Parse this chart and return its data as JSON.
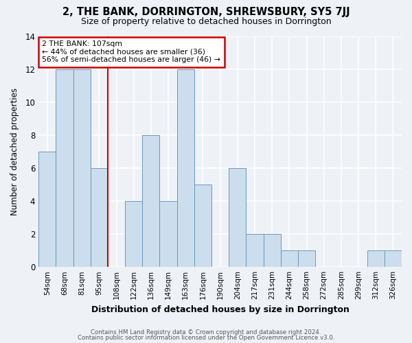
{
  "title": "2, THE BANK, DORRINGTON, SHREWSBURY, SY5 7JJ",
  "subtitle": "Size of property relative to detached houses in Dorrington",
  "xlabel": "Distribution of detached houses by size in Dorrington",
  "ylabel": "Number of detached properties",
  "categories": [
    "54sqm",
    "68sqm",
    "81sqm",
    "95sqm",
    "108sqm",
    "122sqm",
    "136sqm",
    "149sqm",
    "163sqm",
    "176sqm",
    "190sqm",
    "204sqm",
    "217sqm",
    "231sqm",
    "244sqm",
    "258sqm",
    "272sqm",
    "285sqm",
    "299sqm",
    "312sqm",
    "326sqm"
  ],
  "values": [
    7,
    12,
    12,
    6,
    0,
    4,
    8,
    4,
    12,
    5,
    0,
    6,
    2,
    2,
    1,
    1,
    0,
    0,
    0,
    1,
    1
  ],
  "bar_color": "#ccdded",
  "bar_edge_color": "#6699bb",
  "vline_x": 3.5,
  "annotation_line1": "2 THE BANK: 107sqm",
  "annotation_line2": "← 44% of detached houses are smaller (36)",
  "annotation_line3": "56% of semi-detached houses are larger (46) →",
  "annotation_box_color": "#ffffff",
  "annotation_box_edge": "#cc0000",
  "ylim": [
    0,
    14
  ],
  "yticks": [
    0,
    2,
    4,
    6,
    8,
    10,
    12,
    14
  ],
  "footer1": "Contains HM Land Registry data © Crown copyright and database right 2024.",
  "footer2": "Contains public sector information licensed under the Open Government Licence v3.0.",
  "bg_color": "#eef2f7",
  "grid_color": "#ffffff",
  "vline_color": "#cc0000"
}
